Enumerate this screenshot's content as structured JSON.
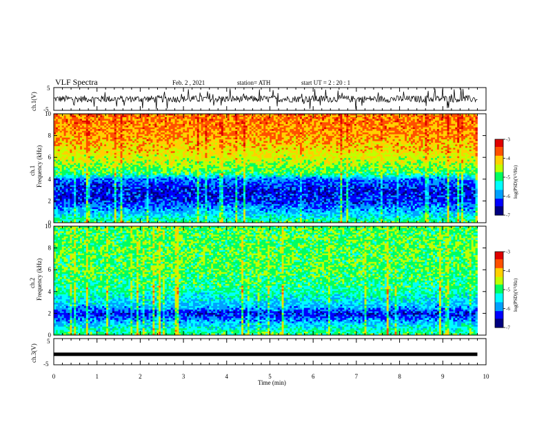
{
  "header": {
    "title": "VLF Spectra",
    "date": "Feb. 2  , 2021",
    "station": "station= ATH",
    "start_ut": "start  UT =   2 : 20 : 1"
  },
  "chart_data": [
    {
      "type": "line",
      "panel": "ch1-waveform",
      "ylabel": "ch.1(V)",
      "ylim": [
        -5,
        5
      ],
      "ytick_labels": [
        "5",
        "-5"
      ],
      "x_range_min": [
        0,
        9.8
      ],
      "approx_amplitude_V": 1.5,
      "color": "#000000"
    },
    {
      "type": "heatmap",
      "panel": "ch1-spectrogram",
      "ylabel": "ch.1\nFrequency  (kHz)",
      "ylim": [
        0,
        10
      ],
      "ytick_labels": [
        "0",
        "2",
        "4",
        "6",
        "8",
        "10"
      ],
      "x_range_min": [
        0,
        9.8
      ],
      "colorbar": {
        "label": "log(PSD)(V²/Hz)",
        "range": [
          -7,
          -3
        ],
        "tick_labels": [
          "-3",
          "-4",
          "-5",
          "-6",
          "-7"
        ]
      },
      "profile_log_psd": [
        {
          "f_khz": 0.0,
          "value": -5.0
        },
        {
          "f_khz": 0.8,
          "value": -5.6
        },
        {
          "f_khz": 2.0,
          "value": -6.3
        },
        {
          "f_khz": 3.0,
          "value": -6.4
        },
        {
          "f_khz": 4.0,
          "value": -6.0
        },
        {
          "f_khz": 4.5,
          "value": -5.0
        },
        {
          "f_khz": 6.0,
          "value": -4.4
        },
        {
          "f_khz": 8.0,
          "value": -3.9
        },
        {
          "f_khz": 10.0,
          "value": -3.8
        }
      ]
    },
    {
      "type": "heatmap",
      "panel": "ch2-spectrogram",
      "ylabel": "ch.2\nFrequency  (kHz)",
      "ylim": [
        0,
        10
      ],
      "ytick_labels": [
        "0",
        "2",
        "4",
        "6",
        "8",
        "10"
      ],
      "x_range_min": [
        0,
        9.8
      ],
      "colorbar": {
        "label": "log(PSD)(V²/Hz)",
        "range": [
          -7,
          -3
        ],
        "tick_labels": [
          "-3",
          "-4",
          "-5",
          "-6",
          "-7"
        ]
      },
      "profile_log_psd": [
        {
          "f_khz": 0.0,
          "value": -5.0
        },
        {
          "f_khz": 1.0,
          "value": -5.6
        },
        {
          "f_khz": 2.0,
          "value": -6.4
        },
        {
          "f_khz": 2.5,
          "value": -5.8
        },
        {
          "f_khz": 4.0,
          "value": -5.2
        },
        {
          "f_khz": 6.0,
          "value": -4.9
        },
        {
          "f_khz": 8.0,
          "value": -4.9
        },
        {
          "f_khz": 10.0,
          "value": -4.9
        }
      ]
    },
    {
      "type": "line",
      "panel": "ch3-waveform",
      "ylabel": "ch.3(V)",
      "ylim": [
        -5,
        5
      ],
      "ytick_labels": [
        "5",
        "-5"
      ],
      "x_range_min": [
        0,
        9.8
      ],
      "approx_level_V": -1,
      "color": "#000000",
      "xlabel": "Time  (min)",
      "xlim": [
        0,
        10
      ],
      "xtick_labels": [
        "0",
        "1",
        "2",
        "3",
        "4",
        "5",
        "6",
        "7",
        "8",
        "9",
        "10"
      ]
    }
  ],
  "colormap": [
    "#000080",
    "#0000ff",
    "#00a0ff",
    "#00ffff",
    "#00ff60",
    "#c0ff00",
    "#ffd000",
    "#ff5000",
    "#e00000",
    "#ffffff"
  ]
}
